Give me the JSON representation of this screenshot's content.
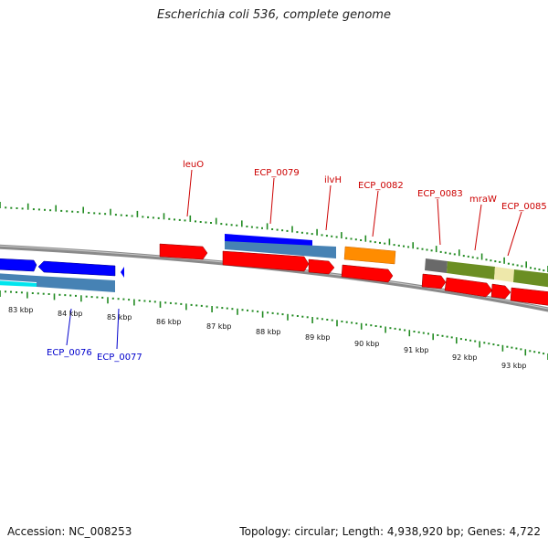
{
  "title": "Escherichia coli 536, complete genome",
  "accession": "Accession: NC_008253",
  "topology": "Topology: circular; Length: 4,938,920 bp; Genes: 4,722",
  "kbp_labels": [
    "83 kbp",
    "84 kbp",
    "85 kbp",
    "86 kbp",
    "87 kbp",
    "88 kbp",
    "89 kbp",
    "90 kbp",
    "91 kbp",
    "92 kbp",
    "93 kbp"
  ],
  "gene_labels_forward": [
    "leuO",
    "ECP_0079",
    "ilvH",
    "ECP_0082",
    "ECP_0083",
    "mraW",
    "ECP_0085"
  ],
  "gene_labels_reverse": [
    "ECP_0076",
    "ECP_0077"
  ],
  "colors": {
    "forward_label": "#cc0000",
    "reverse_label": "#0000cc",
    "tick": "#228b22",
    "backbone": "#808080",
    "cds": "#ff0000",
    "blue": "#0000ff",
    "steelblue": "#4682b4",
    "cyan": "#00e5ee",
    "orange": "#ff8c00",
    "olive": "#6b8e23",
    "khaki": "#eee8aa",
    "gray": "#696969"
  }
}
